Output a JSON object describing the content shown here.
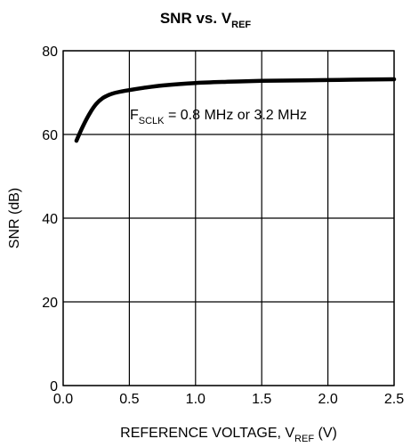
{
  "chart_data": {
    "type": "line",
    "title": {
      "main": "SNR vs. V",
      "sub": "REF"
    },
    "xlabel": {
      "main": "REFERENCE VOLTAGE, V",
      "sub": "REF",
      "suffix": " (V)"
    },
    "ylabel": "SNR (dB)",
    "xlim": [
      0,
      2.5
    ],
    "ylim": [
      0,
      80
    ],
    "x_ticks": [
      "0.0",
      "0.5",
      "1.0",
      "1.5",
      "2.0",
      "2.5"
    ],
    "y_ticks": [
      "0",
      "20",
      "40",
      "60",
      "80"
    ],
    "grid": true,
    "annotation": {
      "main": "F",
      "sub": "SCLK",
      "rest": " = 0.8 MHz or 3.2 MHz"
    },
    "series": [
      {
        "x": [
          0.1,
          0.15,
          0.2,
          0.25,
          0.3,
          0.35,
          0.4,
          0.5,
          0.6,
          0.75,
          1.0,
          1.25,
          1.5,
          2.0,
          2.5
        ],
        "y": [
          58.5,
          62.0,
          65.0,
          67.3,
          68.7,
          69.5,
          70.0,
          70.6,
          71.1,
          71.7,
          72.3,
          72.6,
          72.8,
          73.0,
          73.2
        ]
      }
    ]
  }
}
